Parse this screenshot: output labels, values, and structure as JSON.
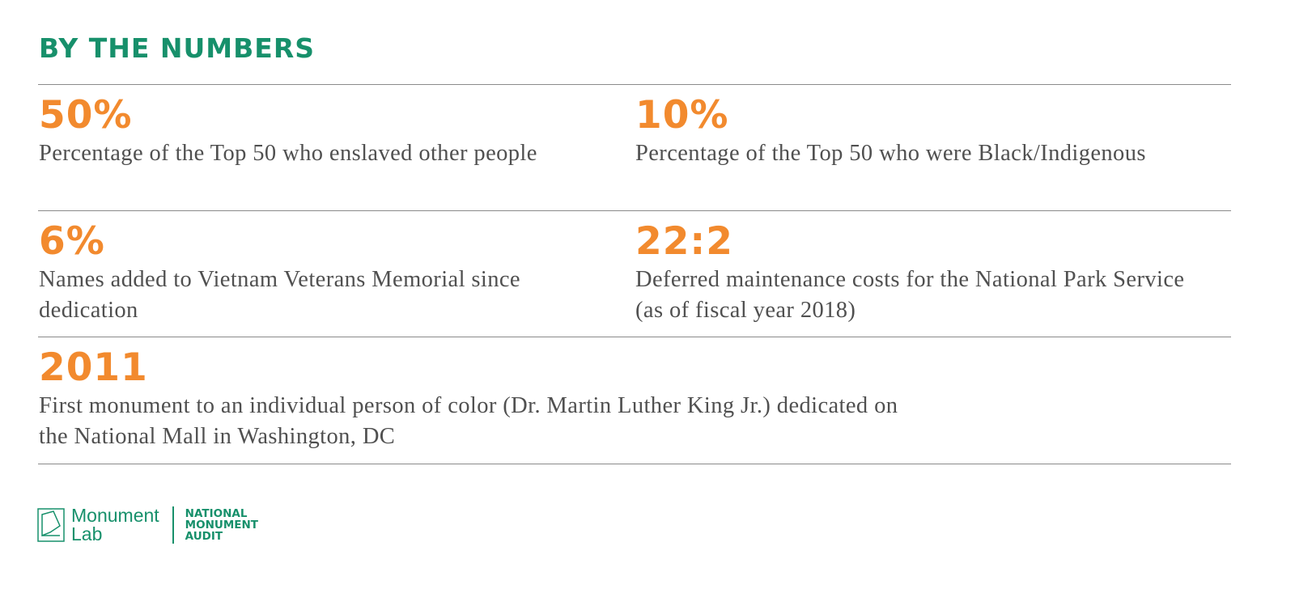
{
  "header": {
    "title": "BY THE NUMBERS"
  },
  "stats": [
    {
      "figure": "50%",
      "description_lines": [
        "Percentage of the Top 50 who enslaved other people"
      ]
    },
    {
      "figure": "10%",
      "description_lines": [
        "Percentage of the Top 50 who were Black/Indigenous"
      ]
    },
    {
      "figure": "6%",
      "description_lines": [
        "Names added to Vietnam Veterans Memorial since",
        "dedication"
      ]
    },
    {
      "figure": "22:2",
      "description_lines": [
        "Deferred maintenance costs for the National Park Service",
        "(as of fiscal year 2018)"
      ]
    },
    {
      "figure": "2011",
      "description_lines": [
        "First monument to an individual person of color (Dr. Martin Luther King Jr.) dedicated on",
        "the National Mall in Washington, DC"
      ]
    }
  ],
  "footer": {
    "logo_lines": [
      "Monument",
      "Lab"
    ],
    "audit_lines": [
      "NATIONAL",
      "MONUMENT",
      "AUDIT"
    ]
  }
}
